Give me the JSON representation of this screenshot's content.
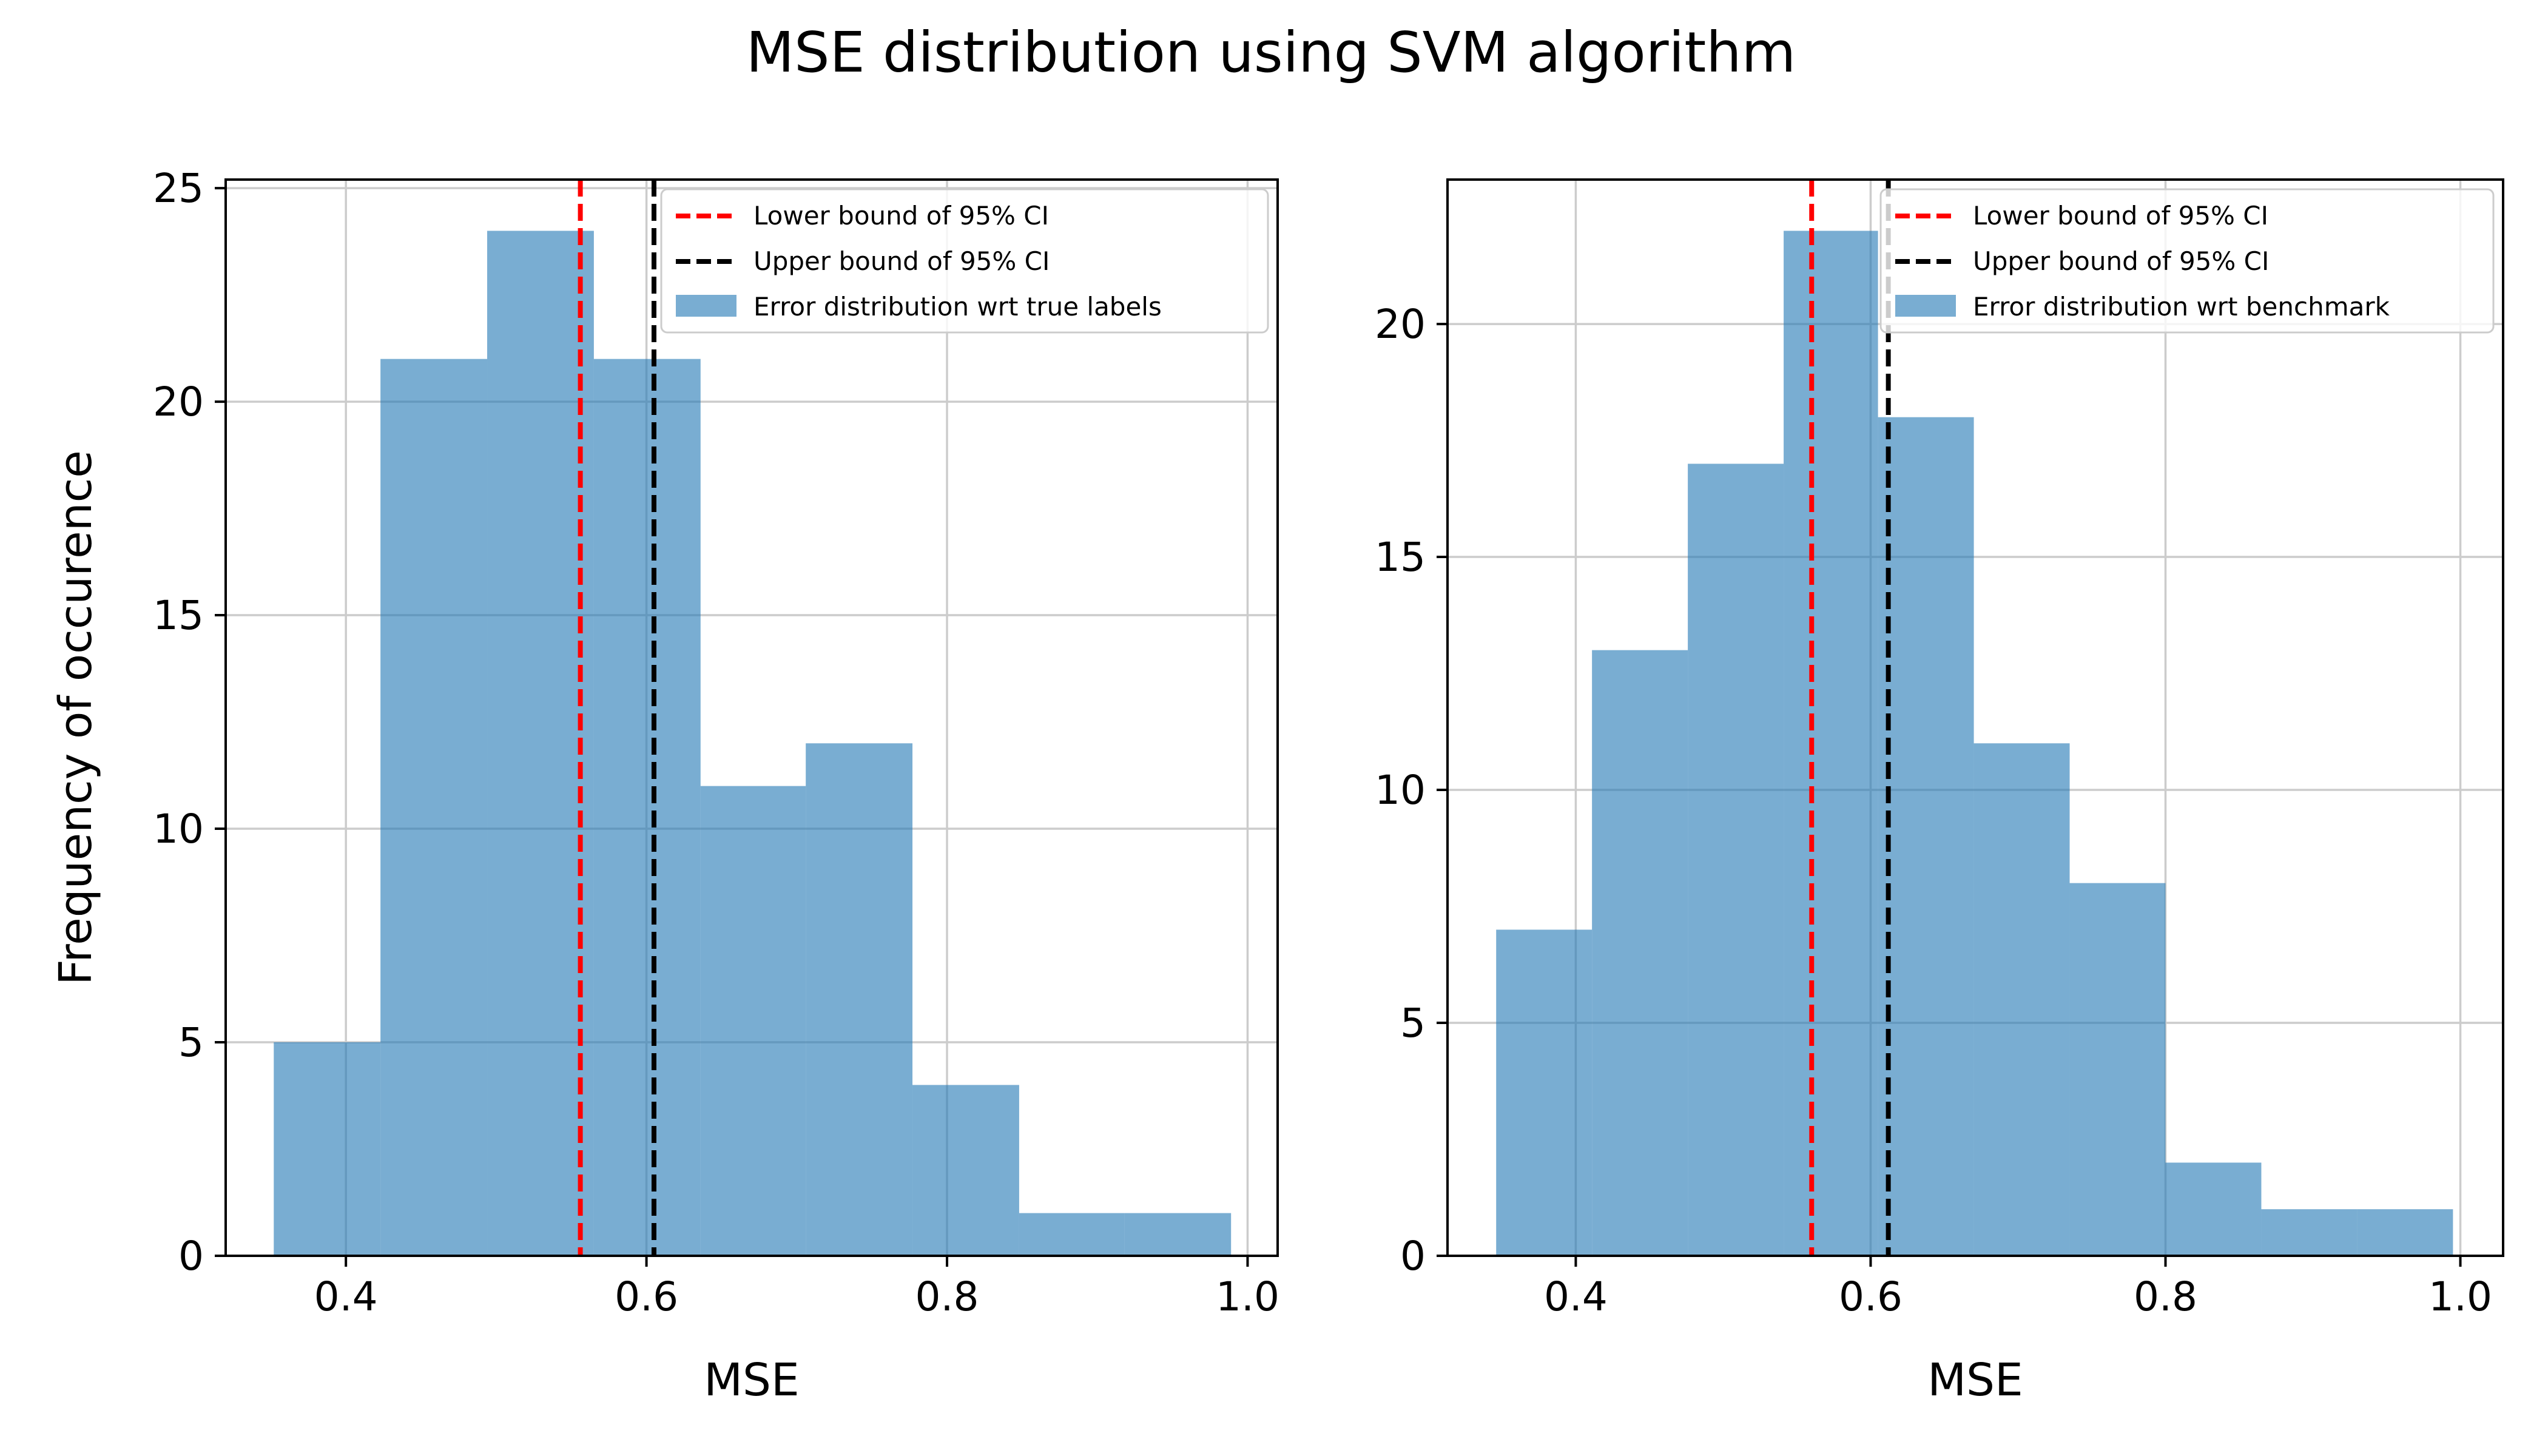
{
  "figure": {
    "title": "MSE distribution using SVM algorithm"
  },
  "colors": {
    "bar": "#1f77b4",
    "lower_ci": "#ff0000",
    "upper_ci": "#000000",
    "grid": "#cccccc"
  },
  "chart_data": [
    {
      "type": "bar",
      "subtype": "histogram",
      "xlabel": "MSE",
      "ylabel": "Frequency of occurence",
      "xlim": [
        0.32,
        1.02
      ],
      "ylim": [
        0,
        25.2
      ],
      "xticks": [
        0.4,
        0.6,
        0.8,
        1.0
      ],
      "xtick_labels": [
        "0.4",
        "0.6",
        "0.8",
        "1.0"
      ],
      "yticks": [
        0,
        5,
        10,
        15,
        20,
        25
      ],
      "ytick_labels": [
        "0",
        "5",
        "10",
        "15",
        "20",
        "25"
      ],
      "grid": true,
      "bin_edges": [
        0.352,
        0.423,
        0.494,
        0.565,
        0.636,
        0.706,
        0.777,
        0.848,
        0.918,
        0.989
      ],
      "counts": [
        5,
        21,
        24,
        21,
        11,
        12,
        4,
        1,
        1
      ],
      "ci_lower": 0.556,
      "ci_upper": 0.605,
      "legend_position": "upper right",
      "legend": [
        "Lower bound of 95% CI",
        "Upper bound of 95% CI",
        "Error distribution wrt true labels"
      ]
    },
    {
      "type": "bar",
      "subtype": "histogram",
      "xlabel": "MSE",
      "ylabel": "",
      "xlim": [
        0.313,
        1.029
      ],
      "ylim": [
        0,
        23.1
      ],
      "xticks": [
        0.4,
        0.6,
        0.8,
        1.0
      ],
      "xtick_labels": [
        "0.4",
        "0.6",
        "0.8",
        "1.0"
      ],
      "yticks": [
        0,
        5,
        10,
        15,
        20
      ],
      "ytick_labels": [
        "0",
        "5",
        "10",
        "15",
        "20"
      ],
      "grid": true,
      "bin_edges": [
        0.346,
        0.411,
        0.476,
        0.541,
        0.605,
        0.67,
        0.735,
        0.8,
        0.865,
        0.93,
        0.995
      ],
      "counts": [
        7,
        13,
        17,
        22,
        18,
        11,
        8,
        2,
        1,
        1
      ],
      "ci_lower": 0.56,
      "ci_upper": 0.612,
      "legend_position": "upper right",
      "legend": [
        "Lower bound of 95% CI",
        "Upper bound of 95% CI",
        "Error distribution wrt benchmark"
      ]
    }
  ]
}
